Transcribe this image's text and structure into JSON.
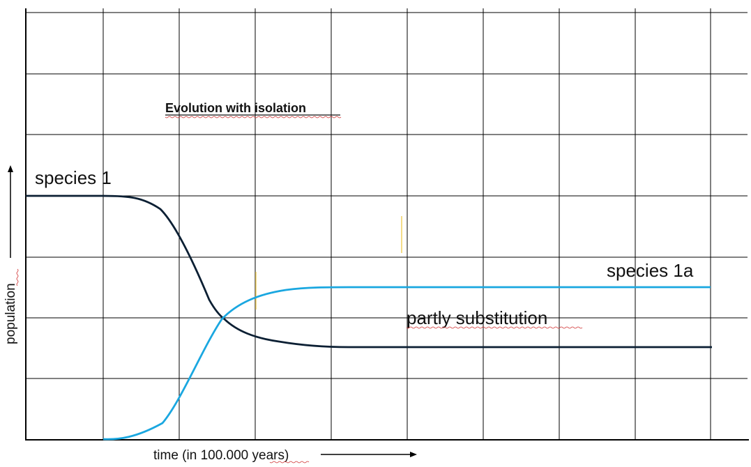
{
  "title": "Evolution with isolation",
  "y_axis_label": "population",
  "x_axis_label": "time (in 100.000 years)",
  "labels": {
    "species_1": "species 1",
    "species_1a": "species 1a",
    "partly_substitution": "partly substitution"
  },
  "colors": {
    "grid": "#000000",
    "species_1_curve": "#0b1f33",
    "species_1a_curve": "#1aa7e0",
    "marker": "#f0d060",
    "spellcheck": "#d03030"
  },
  "chart_data": {
    "type": "line",
    "grid": true,
    "grid_cells": {
      "columns": 9,
      "rows": 7
    },
    "series": [
      {
        "name": "species 1",
        "description": "flat high, declines, levels off low"
      },
      {
        "name": "species 1a",
        "description": "rises from zero, levels off mid"
      }
    ]
  }
}
